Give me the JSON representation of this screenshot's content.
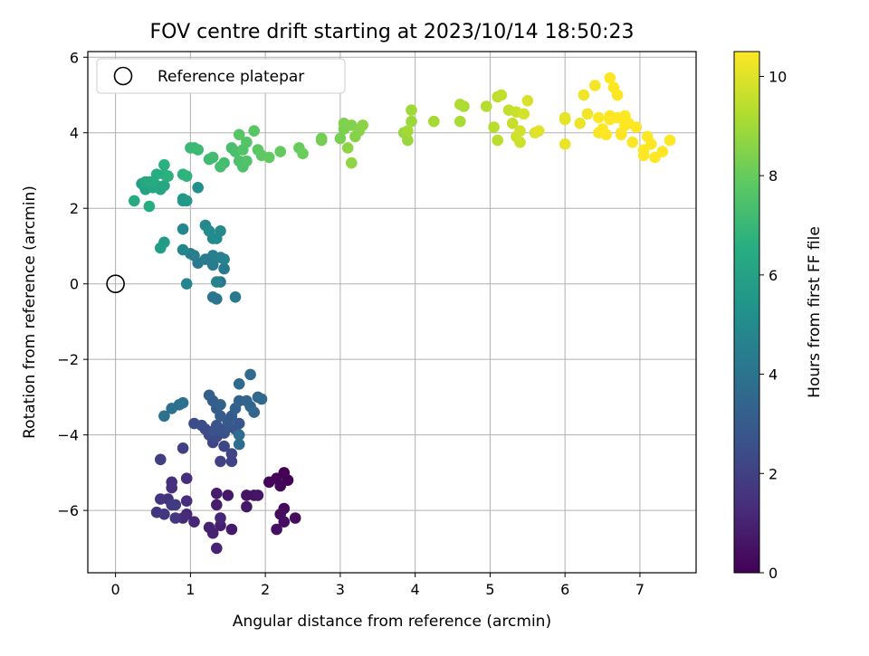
{
  "chart_data": {
    "type": "scatter",
    "title": "FOV centre drift starting at 2023/10/14 18:50:23",
    "xlabel": "Angular distance from reference (arcmin)",
    "ylabel": "Rotation from reference (arcmin)",
    "xlim": [
      -0.37,
      7.75
    ],
    "ylim": [
      -7.65,
      6.15
    ],
    "x_ticks": [
      0,
      1,
      2,
      3,
      4,
      5,
      6,
      7
    ],
    "y_ticks": [
      -6,
      -4,
      -2,
      0,
      2,
      4,
      6
    ],
    "grid": true,
    "legend": {
      "position": "top-left",
      "entries": [
        {
          "label": "Reference platepar",
          "marker": "open-circle",
          "color": "#000000"
        }
      ]
    },
    "reference_point": {
      "x": 0,
      "y": 0
    },
    "colorbar": {
      "label": "Hours from first FF file",
      "colormap": "viridis",
      "range": [
        0,
        10.5
      ],
      "ticks": [
        0,
        2,
        4,
        6,
        8,
        10
      ]
    },
    "points": [
      [
        2.25,
        -5.0,
        0.0
      ],
      [
        2.3,
        -5.2,
        0.05
      ],
      [
        2.15,
        -5.15,
        0.1
      ],
      [
        2.05,
        -5.25,
        0.15
      ],
      [
        2.2,
        -5.35,
        0.2
      ],
      [
        2.25,
        -5.95,
        0.25
      ],
      [
        2.2,
        -6.1,
        0.3
      ],
      [
        2.4,
        -6.2,
        0.35
      ],
      [
        2.25,
        -6.3,
        0.4
      ],
      [
        2.15,
        -6.5,
        0.45
      ],
      [
        1.85,
        -5.6,
        0.5
      ],
      [
        1.75,
        -5.6,
        0.55
      ],
      [
        1.9,
        -5.6,
        0.6
      ],
      [
        1.75,
        -5.9,
        0.65
      ],
      [
        1.5,
        -5.6,
        0.7
      ],
      [
        1.55,
        -6.5,
        0.75
      ],
      [
        1.35,
        -5.55,
        0.8
      ],
      [
        1.35,
        -5.85,
        0.85
      ],
      [
        1.4,
        -6.4,
        0.9
      ],
      [
        1.3,
        -6.6,
        0.95
      ],
      [
        1.25,
        -6.45,
        1.0
      ],
      [
        1.35,
        -7.0,
        1.05
      ],
      [
        1.4,
        -6.2,
        1.1
      ],
      [
        1.05,
        -6.3,
        1.15
      ],
      [
        0.95,
        -6.1,
        1.2
      ],
      [
        0.9,
        -6.2,
        1.25
      ],
      [
        0.95,
        -5.75,
        1.3
      ],
      [
        0.95,
        -5.15,
        1.35
      ],
      [
        0.75,
        -5.25,
        1.4
      ],
      [
        0.75,
        -5.4,
        1.45
      ],
      [
        0.7,
        -5.7,
        1.5
      ],
      [
        0.6,
        -5.7,
        1.55
      ],
      [
        0.55,
        -6.05,
        1.6
      ],
      [
        0.65,
        -6.1,
        1.65
      ],
      [
        0.8,
        -6.2,
        1.7
      ],
      [
        0.75,
        -5.85,
        1.75
      ],
      [
        0.8,
        -5.85,
        1.8
      ],
      [
        0.6,
        -4.65,
        1.9
      ],
      [
        0.9,
        -4.35,
        2.0
      ],
      [
        1.4,
        -4.7,
        2.05
      ],
      [
        1.55,
        -4.7,
        2.1
      ],
      [
        1.55,
        -4.5,
        2.15
      ],
      [
        1.45,
        -4.3,
        2.2
      ],
      [
        1.3,
        -4.2,
        2.25
      ],
      [
        1.35,
        -4.05,
        2.3
      ],
      [
        1.25,
        -4.0,
        2.35
      ],
      [
        1.2,
        -3.85,
        2.4
      ],
      [
        1.05,
        -3.7,
        2.45
      ],
      [
        1.15,
        -3.75,
        2.5
      ],
      [
        1.3,
        -3.9,
        2.55
      ],
      [
        1.45,
        -3.95,
        2.6
      ],
      [
        1.4,
        -3.85,
        2.65
      ],
      [
        1.35,
        -3.75,
        2.7
      ],
      [
        1.5,
        -3.8,
        2.75
      ],
      [
        1.6,
        -3.85,
        2.8
      ],
      [
        1.65,
        -3.7,
        2.85
      ],
      [
        1.5,
        -3.65,
        2.9
      ],
      [
        1.55,
        -3.5,
        2.95
      ],
      [
        1.4,
        -3.5,
        3.0
      ],
      [
        1.35,
        -3.3,
        3.05
      ],
      [
        1.3,
        -3.1,
        3.1
      ],
      [
        1.25,
        -2.95,
        3.15
      ],
      [
        1.4,
        -3.2,
        3.2
      ],
      [
        1.6,
        -3.3,
        3.25
      ],
      [
        1.65,
        -3.1,
        3.3
      ],
      [
        1.75,
        -3.1,
        3.35
      ],
      [
        1.8,
        -3.25,
        3.4
      ],
      [
        1.85,
        -3.4,
        3.45
      ],
      [
        1.9,
        -3.0,
        3.5
      ],
      [
        1.95,
        -3.05,
        3.55
      ],
      [
        1.8,
        -2.4,
        3.6
      ],
      [
        1.65,
        -2.65,
        3.65
      ],
      [
        1.65,
        -4.0,
        3.7
      ],
      [
        1.65,
        -4.25,
        3.75
      ],
      [
        0.75,
        -3.3,
        3.8
      ],
      [
        0.85,
        -3.2,
        3.85
      ],
      [
        0.9,
        -3.15,
        3.9
      ],
      [
        0.65,
        -3.5,
        3.95
      ],
      [
        1.4,
        0.05,
        4.0
      ],
      [
        1.35,
        -0.4,
        4.05
      ],
      [
        1.3,
        -0.35,
        4.1
      ],
      [
        1.1,
        0.55,
        4.15
      ],
      [
        1.6,
        -0.35,
        4.2
      ],
      [
        1.45,
        0.4,
        4.25
      ],
      [
        1.3,
        0.5,
        4.3
      ],
      [
        1.2,
        0.65,
        4.35
      ],
      [
        1.0,
        0.8,
        4.4
      ],
      [
        1.05,
        0.75,
        4.45
      ],
      [
        1.3,
        0.75,
        4.5
      ],
      [
        1.4,
        0.7,
        4.55
      ],
      [
        1.45,
        0.65,
        4.6
      ],
      [
        1.35,
        0.05,
        4.65
      ],
      [
        0.95,
        0.0,
        4.7
      ],
      [
        0.9,
        0.9,
        4.75
      ],
      [
        0.9,
        1.45,
        4.8
      ],
      [
        1.2,
        1.55,
        4.85
      ],
      [
        1.3,
        1.2,
        4.9
      ],
      [
        1.4,
        1.4,
        4.95
      ],
      [
        1.35,
        1.2,
        5.0
      ],
      [
        1.25,
        1.4,
        5.05
      ],
      [
        1.1,
        2.55,
        5.2
      ],
      [
        0.9,
        2.25,
        5.4
      ],
      [
        0.9,
        2.2,
        5.5
      ],
      [
        0.95,
        2.2,
        5.6
      ],
      [
        0.65,
        1.1,
        5.7
      ],
      [
        0.6,
        0.95,
        5.8
      ],
      [
        0.35,
        2.65,
        5.9
      ],
      [
        0.4,
        2.5,
        6.0
      ],
      [
        0.45,
        2.7,
        6.05
      ],
      [
        0.55,
        2.6,
        6.1
      ],
      [
        0.6,
        2.5,
        6.15
      ],
      [
        0.65,
        2.6,
        6.2
      ],
      [
        0.5,
        2.55,
        6.25
      ],
      [
        0.4,
        2.7,
        6.3
      ],
      [
        0.5,
        2.7,
        6.35
      ],
      [
        0.25,
        2.2,
        6.4
      ],
      [
        0.45,
        2.05,
        6.45
      ],
      [
        0.55,
        2.9,
        6.5
      ],
      [
        0.65,
        2.9,
        6.55
      ],
      [
        0.65,
        3.15,
        6.6
      ],
      [
        0.7,
        2.85,
        6.65
      ],
      [
        0.9,
        2.9,
        6.7
      ],
      [
        0.95,
        2.85,
        6.75
      ],
      [
        1.0,
        3.6,
        7.0
      ],
      [
        1.05,
        3.6,
        7.05
      ],
      [
        1.1,
        3.55,
        7.1
      ],
      [
        1.25,
        3.3,
        7.15
      ],
      [
        1.3,
        3.35,
        7.2
      ],
      [
        1.45,
        3.2,
        7.25
      ],
      [
        1.4,
        3.1,
        7.3
      ],
      [
        1.55,
        3.6,
        7.35
      ],
      [
        1.6,
        3.5,
        7.4
      ],
      [
        1.65,
        3.25,
        7.45
      ],
      [
        1.7,
        3.1,
        7.5
      ],
      [
        1.75,
        3.25,
        7.55
      ],
      [
        1.7,
        3.55,
        7.6
      ],
      [
        1.75,
        3.75,
        7.65
      ],
      [
        1.65,
        3.95,
        7.7
      ],
      [
        1.85,
        4.05,
        7.75
      ],
      [
        1.9,
        3.55,
        7.8
      ],
      [
        1.95,
        3.4,
        7.85
      ],
      [
        2.05,
        3.35,
        7.9
      ],
      [
        2.2,
        3.5,
        7.95
      ],
      [
        2.45,
        3.6,
        8.0
      ],
      [
        2.5,
        3.45,
        8.05
      ],
      [
        2.75,
        3.8,
        8.2
      ],
      [
        2.75,
        3.85,
        8.25
      ],
      [
        3.0,
        3.85,
        8.3
      ],
      [
        3.05,
        4.1,
        8.35
      ],
      [
        3.05,
        4.25,
        8.4
      ],
      [
        3.15,
        4.2,
        8.45
      ],
      [
        3.2,
        3.9,
        8.5
      ],
      [
        3.25,
        4.05,
        8.55
      ],
      [
        3.3,
        4.2,
        8.6
      ],
      [
        3.1,
        3.6,
        8.65
      ],
      [
        3.15,
        3.2,
        8.7
      ],
      [
        3.85,
        4.0,
        8.8
      ],
      [
        3.9,
        3.8,
        8.85
      ],
      [
        3.95,
        4.3,
        8.9
      ],
      [
        3.95,
        4.6,
        8.95
      ],
      [
        3.9,
        4.05,
        9.0
      ],
      [
        4.25,
        4.3,
        9.05
      ],
      [
        4.6,
        4.3,
        9.1
      ],
      [
        4.65,
        4.7,
        9.15
      ],
      [
        4.6,
        4.75,
        9.2
      ],
      [
        4.95,
        4.7,
        9.3
      ],
      [
        5.05,
        4.15,
        9.35
      ],
      [
        5.1,
        3.8,
        9.4
      ],
      [
        5.1,
        4.95,
        9.45
      ],
      [
        5.15,
        5.0,
        9.5
      ],
      [
        5.25,
        4.6,
        9.55
      ],
      [
        5.3,
        4.25,
        9.6
      ],
      [
        5.35,
        4.55,
        9.65
      ],
      [
        5.4,
        3.75,
        9.7
      ],
      [
        5.35,
        3.9,
        9.75
      ],
      [
        5.4,
        4.05,
        9.8
      ],
      [
        5.45,
        4.5,
        9.85
      ],
      [
        5.5,
        4.85,
        9.9
      ],
      [
        5.6,
        4.0,
        9.95
      ],
      [
        5.65,
        4.05,
        10.0
      ],
      [
        6.0,
        4.4,
        10.05
      ],
      [
        6.0,
        4.35,
        10.1
      ],
      [
        6.0,
        3.7,
        10.15
      ],
      [
        6.2,
        4.25,
        10.2
      ],
      [
        6.25,
        5.0,
        10.25
      ],
      [
        6.3,
        4.5,
        10.3
      ],
      [
        6.4,
        5.25,
        10.35
      ],
      [
        6.45,
        4.0,
        10.4
      ],
      [
        6.45,
        4.4,
        10.45
      ],
      [
        6.5,
        4.1,
        10.5
      ],
      [
        6.55,
        3.95,
        10.5
      ],
      [
        6.6,
        4.45,
        10.5
      ],
      [
        6.6,
        5.45,
        10.5
      ],
      [
        6.65,
        5.2,
        10.5
      ],
      [
        6.7,
        5.0,
        10.5
      ],
      [
        6.7,
        4.4,
        10.5
      ],
      [
        6.75,
        4.0,
        10.5
      ],
      [
        6.8,
        4.45,
        10.5
      ],
      [
        6.85,
        4.25,
        10.5
      ],
      [
        6.9,
        3.75,
        10.5
      ],
      [
        6.95,
        4.15,
        10.5
      ],
      [
        7.05,
        3.55,
        10.5
      ],
      [
        7.05,
        3.4,
        10.5
      ],
      [
        7.1,
        3.9,
        10.5
      ],
      [
        7.15,
        3.7,
        10.5
      ],
      [
        7.2,
        3.35,
        10.5
      ],
      [
        7.3,
        3.5,
        10.5
      ],
      [
        7.4,
        3.8,
        10.5
      ],
      [
        6.8,
        4.2,
        10.5
      ],
      [
        6.75,
        3.95,
        10.5
      ],
      [
        6.6,
        4.35,
        10.5
      ]
    ]
  }
}
